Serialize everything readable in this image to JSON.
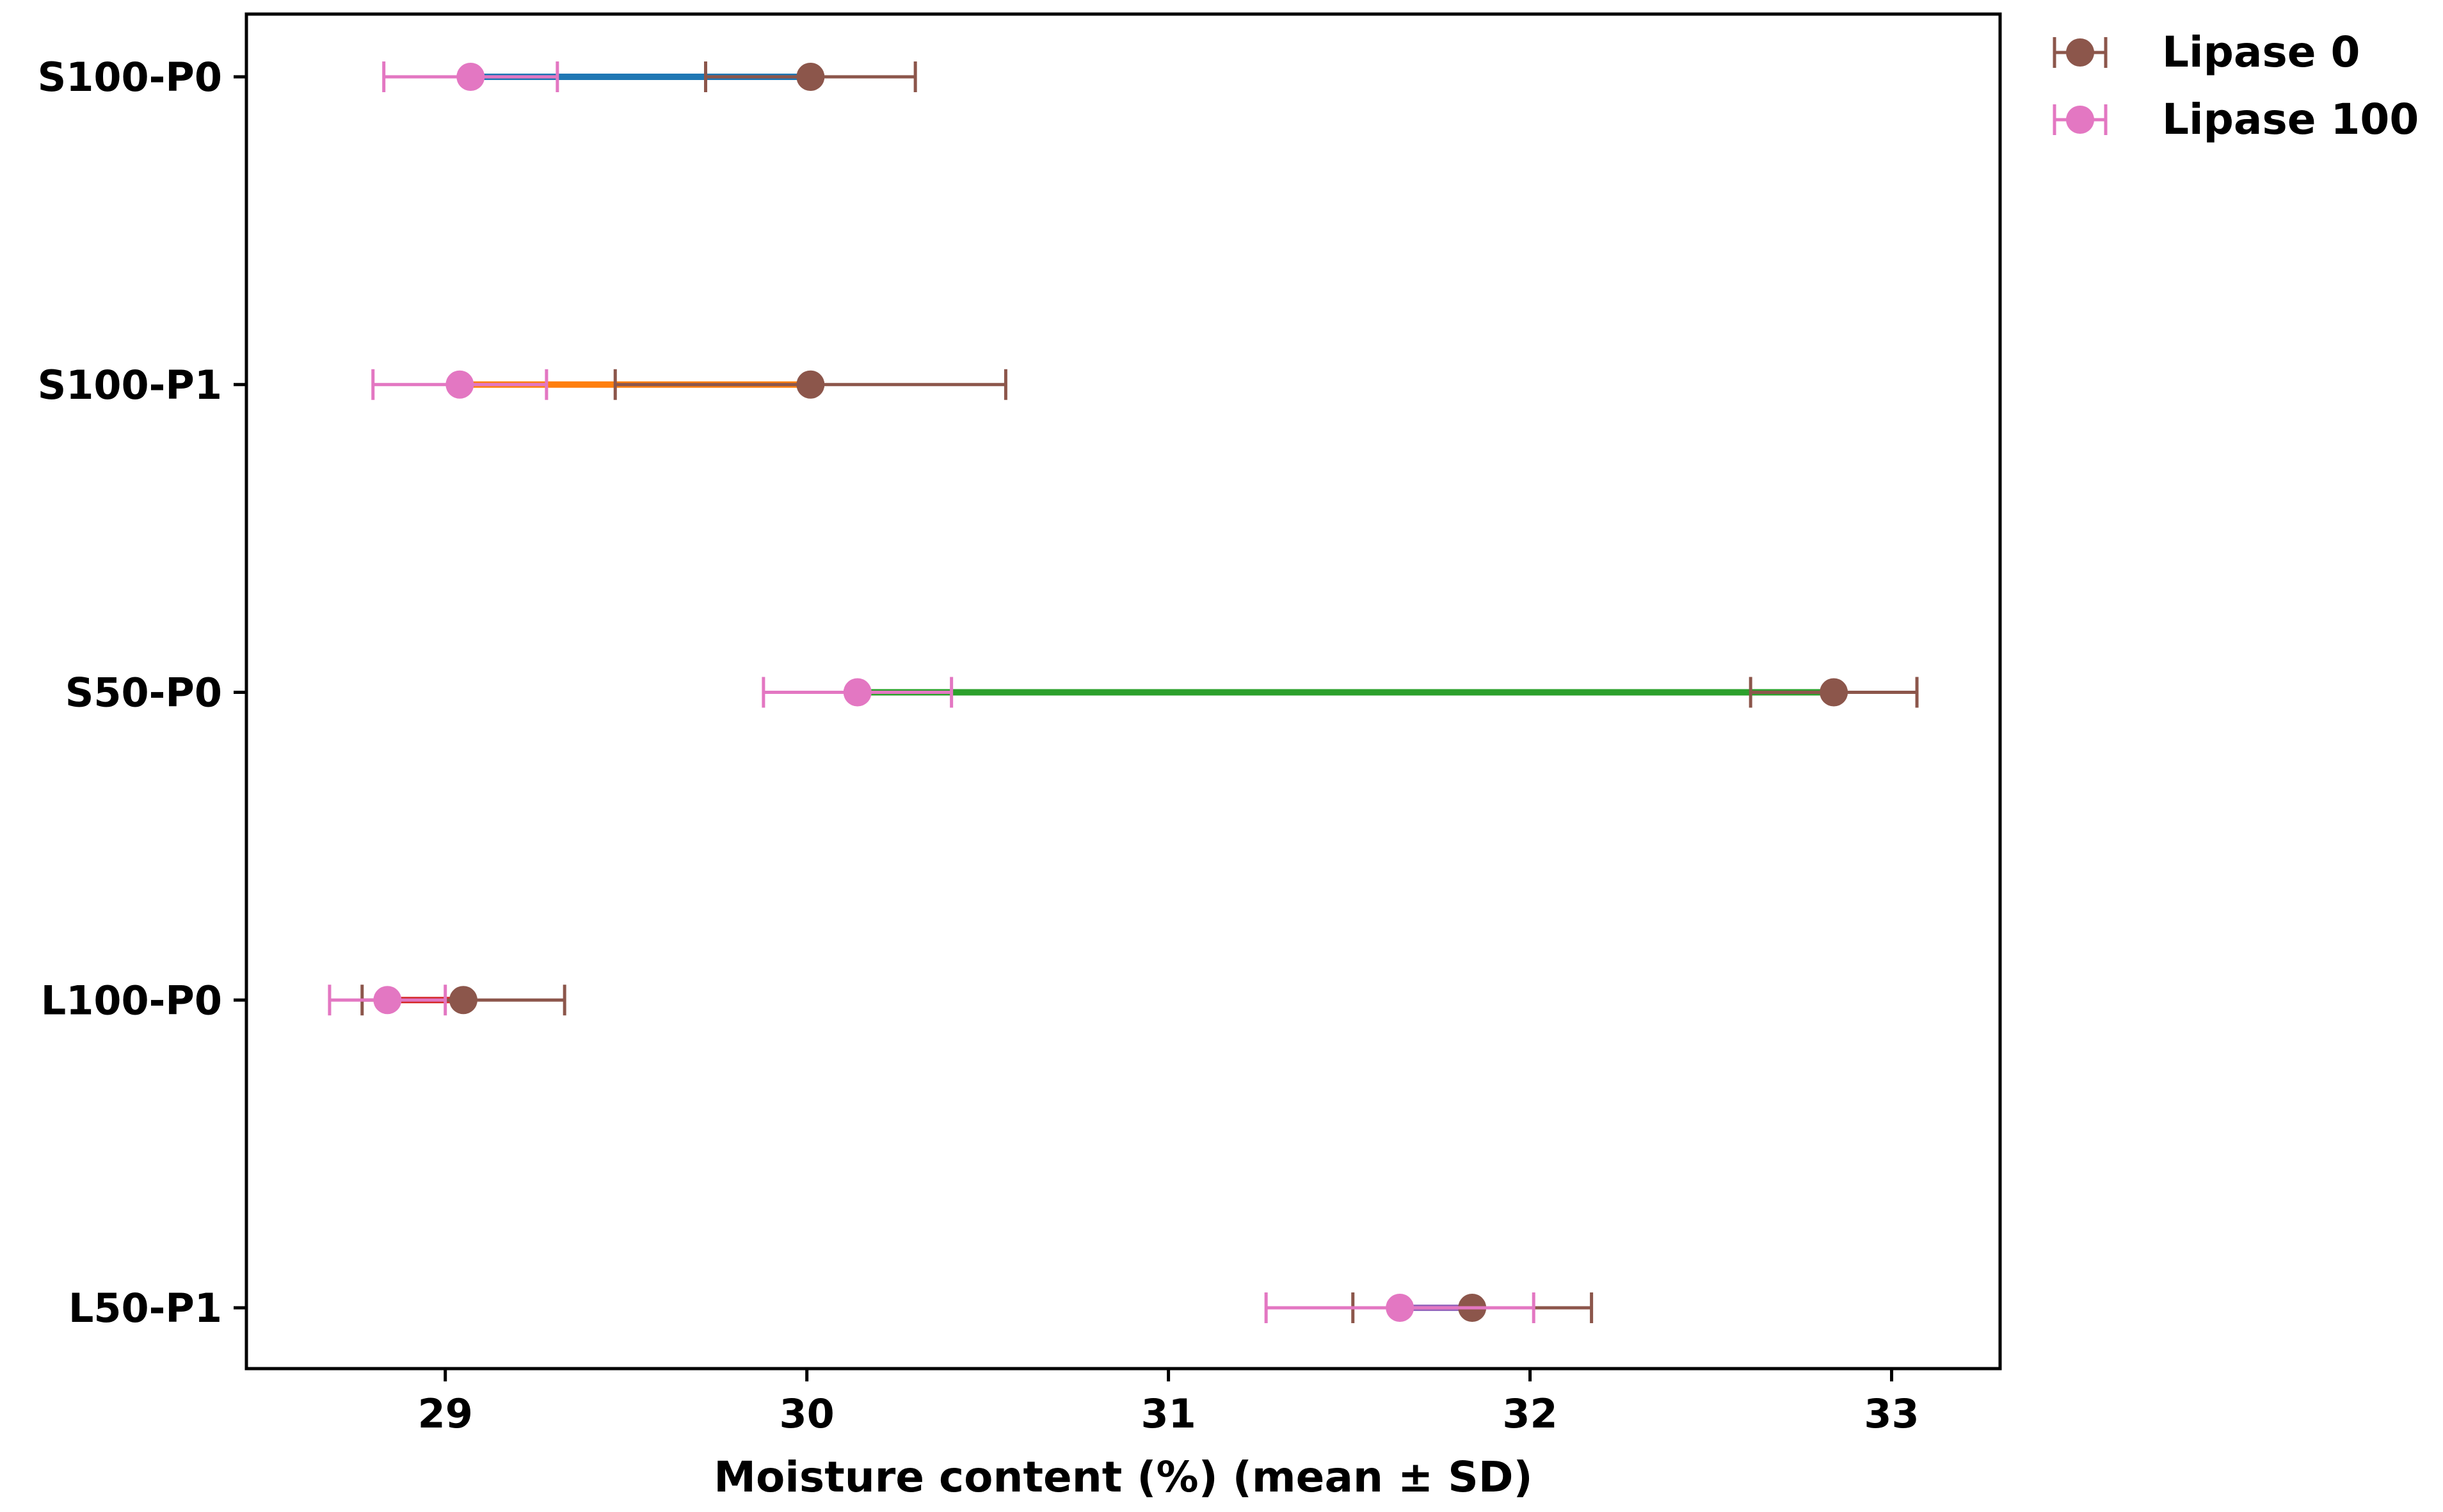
{
  "chart_data": {
    "type": "dumbbell",
    "xlabel": "Moisture content (%) (mean ± SD)",
    "ylabel": "",
    "xlim": [
      28.45,
      33.3
    ],
    "xticks": [
      29,
      30,
      31,
      32,
      33
    ],
    "categories": [
      "S100-P0",
      "S100-P1",
      "S50-P0",
      "L100-P0",
      "L50-P1"
    ],
    "connector_colors": [
      "#1f77b4",
      "#ff7f0e",
      "#2ca02c",
      "#d62728",
      "#9467bd"
    ],
    "series": [
      {
        "name": "Lipase 0",
        "color": "#8c564b",
        "values": [
          30.01,
          30.01,
          32.84,
          29.05,
          31.84
        ],
        "sd": [
          0.29,
          0.54,
          0.23,
          0.28,
          0.33
        ]
      },
      {
        "name": "Lipase 100",
        "color": "#e377c2",
        "values": [
          29.07,
          29.04,
          30.14,
          28.84,
          31.64
        ],
        "sd": [
          0.24,
          0.24,
          0.26,
          0.16,
          0.37
        ]
      }
    ],
    "legend_position": "upper-right-outside",
    "grid": false
  }
}
